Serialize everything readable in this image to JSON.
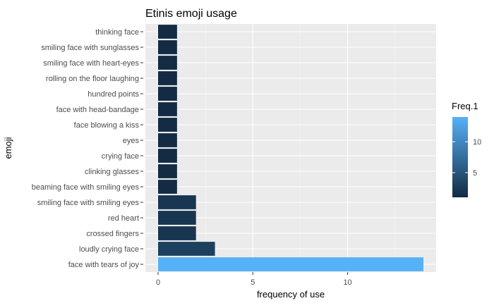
{
  "chart_data": {
    "type": "bar",
    "orientation": "horizontal",
    "title": "Etinis emoji usage",
    "xlabel": "frequency of use",
    "ylabel": "emoji",
    "xlim": [
      0,
      14.7
    ],
    "xticks": [
      0,
      5,
      10
    ],
    "grid": true,
    "categories": [
      "thinking face",
      "smiling face with sunglasses",
      "smiling face with heart-eyes",
      "rolling on the floor laughing",
      "hundred points",
      "face with head-bandage",
      "face blowing a kiss",
      "eyes",
      "crying face",
      "clinking glasses",
      "beaming face with smiling eyes",
      "smiling face with smiling eyes",
      "red heart",
      "crossed fingers",
      "loudly crying face",
      "face with tears of joy"
    ],
    "values": [
      1,
      1,
      1,
      1,
      1,
      1,
      1,
      1,
      1,
      1,
      1,
      2,
      2,
      2,
      3,
      14
    ],
    "legend": {
      "title": "Freq.1",
      "placement": "right",
      "ticks": [
        5,
        10
      ],
      "range": [
        1,
        14
      ],
      "color_low": "#132B43",
      "color_high": "#56B1F7"
    },
    "colors": {
      "panel_bg": "#EBEBEB",
      "grid_major": "#FFFFFF",
      "axis_text": "#4D4D4D"
    }
  }
}
